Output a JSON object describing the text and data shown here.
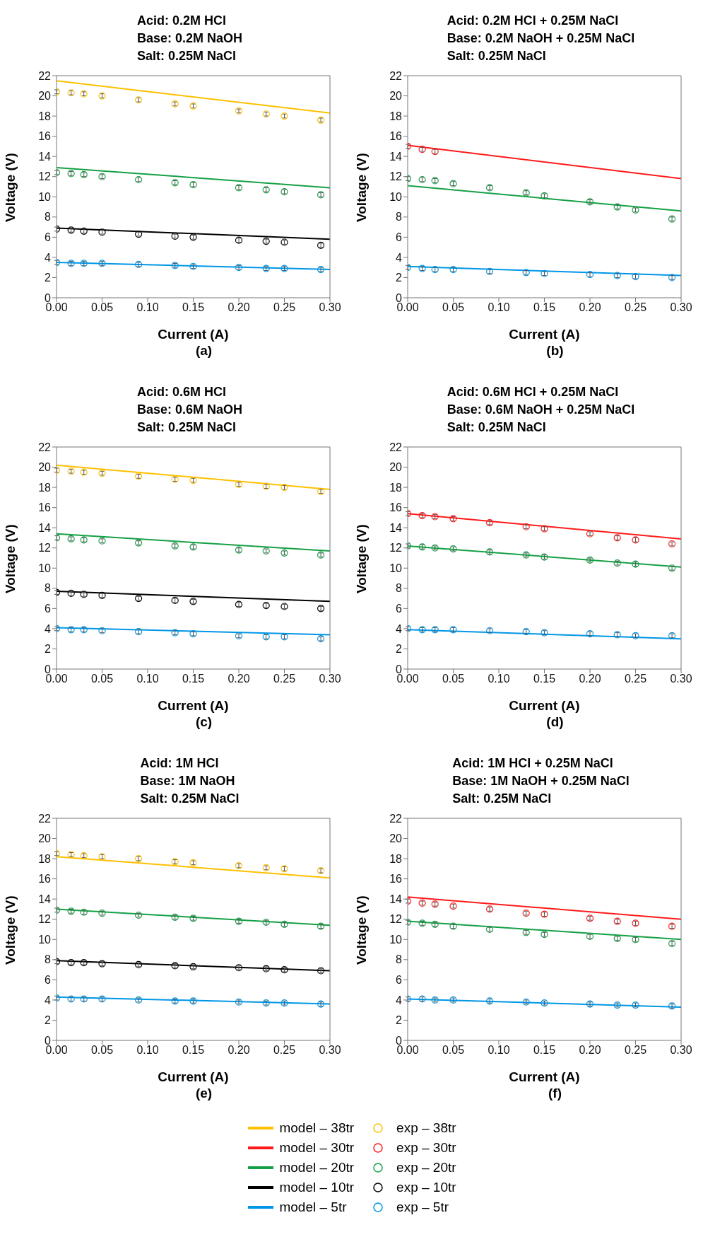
{
  "chart_data": [
    {
      "type": "scatter",
      "title": "Acid: 0.2M HCl\nBase: 0.2M NaOH\nSalt: 0.25M NaCl",
      "xlabel": "Current (A)",
      "ylabel": "Voltage (V)",
      "annotations": [
        "(a)"
      ],
      "xlim": [
        0,
        0.3
      ],
      "xticks": [
        {
          "value": 0,
          "label": "0.00"
        },
        {
          "value": 0.05,
          "label": "0.05"
        },
        {
          "value": 0.1,
          "label": "0.10"
        },
        {
          "value": 0.15,
          "label": "0.15"
        },
        {
          "value": 0.2,
          "label": "0.20"
        },
        {
          "value": 0.25,
          "label": "0.25"
        },
        {
          "value": 0.3,
          "label": "0.30"
        }
      ],
      "ylim": [
        0,
        22
      ],
      "yticks": [
        0,
        2,
        4,
        6,
        8,
        10,
        12,
        14,
        16,
        18,
        20,
        22
      ],
      "grid": false,
      "legend": "bottom",
      "x": [
        0,
        0.016,
        0.03,
        0.05,
        0.09,
        0.13,
        0.15,
        0.2,
        0.23,
        0.25,
        0.29
      ],
      "series": [
        {
          "name": "model – 38tr",
          "type": "line",
          "color": "#ffc000",
          "marker": "none",
          "x": [
            0,
            0.3
          ],
          "values": [
            21.5,
            18.3
          ]
        },
        {
          "name": "exp – 38tr",
          "type": "scatter",
          "color": "#ffc000",
          "marker": "circle",
          "values": [
            20.4,
            20.3,
            20.2,
            20.0,
            19.6,
            19.2,
            19.0,
            18.5,
            18.2,
            18.0,
            17.6
          ],
          "errors": [
            0.2,
            0.2,
            0.2,
            0.2,
            0.2,
            0.2,
            0.2,
            0.2,
            0.2,
            0.2,
            0.2
          ]
        },
        {
          "name": "model – 20tr",
          "type": "line",
          "color": "#16a045",
          "marker": "none",
          "x": [
            0,
            0.3
          ],
          "values": [
            12.9,
            10.9
          ]
        },
        {
          "name": "exp – 20tr",
          "type": "scatter",
          "color": "#16a045",
          "marker": "circle",
          "values": [
            12.4,
            12.3,
            12.2,
            12.0,
            11.7,
            11.4,
            11.2,
            10.9,
            10.7,
            10.5,
            10.2
          ],
          "errors": [
            0.2,
            0.2,
            0.2,
            0.2,
            0.2,
            0.2,
            0.2,
            0.2,
            0.2,
            0.2,
            0.2
          ]
        },
        {
          "name": "model – 10tr",
          "type": "line",
          "color": "#000000",
          "marker": "none",
          "x": [
            0,
            0.3
          ],
          "values": [
            6.9,
            5.8
          ]
        },
        {
          "name": "exp – 10tr",
          "type": "scatter",
          "color": "#000000",
          "marker": "circle",
          "values": [
            6.8,
            6.7,
            6.6,
            6.5,
            6.3,
            6.1,
            6.0,
            5.7,
            5.6,
            5.5,
            5.2
          ],
          "errors": [
            0.2,
            0.2,
            0.2,
            0.2,
            0.2,
            0.2,
            0.2,
            0.2,
            0.2,
            0.2,
            0.2
          ]
        },
        {
          "name": "model – 5tr",
          "type": "line",
          "color": "#0096e6",
          "marker": "none",
          "x": [
            0,
            0.3
          ],
          "values": [
            3.5,
            2.8
          ]
        },
        {
          "name": "exp – 5tr",
          "type": "scatter",
          "color": "#0096e6",
          "marker": "circle",
          "values": [
            3.5,
            3.4,
            3.4,
            3.4,
            3.3,
            3.2,
            3.1,
            3.0,
            2.9,
            2.9,
            2.8
          ],
          "errors": [
            0.2,
            0.2,
            0.2,
            0.2,
            0.2,
            0.2,
            0.2,
            0.2,
            0.2,
            0.2,
            0.2
          ]
        }
      ]
    },
    {
      "type": "scatter",
      "title": "Acid: 0.2M HCl + 0.25M NaCl\nBase: 0.2M NaOH + 0.25M NaCl\nSalt: 0.25M NaCl",
      "xlabel": "Current (A)",
      "ylabel": "Voltage (V)",
      "annotations": [
        "(b)"
      ],
      "xlim": [
        0,
        0.3
      ],
      "xticks": [
        {
          "value": 0,
          "label": "0.00"
        },
        {
          "value": 0.05,
          "label": "0.05"
        },
        {
          "value": 0.1,
          "label": "0.10"
        },
        {
          "value": 0.15,
          "label": "0.15"
        },
        {
          "value": 0.2,
          "label": "0.20"
        },
        {
          "value": 0.25,
          "label": "0.25"
        },
        {
          "value": 0.3,
          "label": "0.30"
        }
      ],
      "ylim": [
        0,
        22
      ],
      "yticks": [
        0,
        2,
        4,
        6,
        8,
        10,
        12,
        14,
        16,
        18,
        20,
        22
      ],
      "grid": false,
      "legend": "bottom",
      "x": [
        0,
        0.016,
        0.03,
        0.05,
        0.09,
        0.13,
        0.15,
        0.2,
        0.23,
        0.25,
        0.29
      ],
      "series": [
        {
          "name": "model – 30tr",
          "type": "line",
          "color": "#ff1a1a",
          "marker": "none",
          "x": [
            0,
            0.3
          ],
          "values": [
            15.1,
            11.8
          ]
        },
        {
          "name": "exp – 30tr",
          "type": "scatter",
          "color": "#ff1a1a",
          "marker": "circle",
          "x": [
            0,
            0.016,
            0.03
          ],
          "values": [
            15.0,
            14.7,
            14.5
          ],
          "errors": [
            0.2,
            0.2,
            0.2
          ]
        },
        {
          "name": "model – 20tr",
          "type": "line",
          "color": "#16a045",
          "marker": "none",
          "x": [
            0,
            0.3
          ],
          "values": [
            11.1,
            8.6
          ]
        },
        {
          "name": "exp – 20tr",
          "type": "scatter",
          "color": "#16a045",
          "marker": "circle",
          "values": [
            11.8,
            11.7,
            11.6,
            11.3,
            10.9,
            10.4,
            10.1,
            9.5,
            9.0,
            8.7,
            7.8
          ],
          "errors": [
            0.2,
            0.2,
            0.2,
            0.2,
            0.2,
            0.2,
            0.2,
            0.2,
            0.2,
            0.2,
            0.2
          ]
        },
        {
          "name": "model – 5tr",
          "type": "line",
          "color": "#0096e6",
          "marker": "none",
          "x": [
            0,
            0.3
          ],
          "values": [
            3.1,
            2.2
          ]
        },
        {
          "name": "exp – 5tr",
          "type": "scatter",
          "color": "#0096e6",
          "marker": "circle",
          "values": [
            3.0,
            2.9,
            2.8,
            2.8,
            2.6,
            2.5,
            2.4,
            2.3,
            2.2,
            2.1,
            2.0
          ],
          "errors": [
            0.2,
            0.2,
            0.2,
            0.2,
            0.2,
            0.2,
            0.2,
            0.2,
            0.2,
            0.2,
            0.2
          ]
        }
      ]
    },
    {
      "type": "scatter",
      "title": "Acid: 0.6M HCl\nBase: 0.6M NaOH\nSalt: 0.25M NaCl",
      "xlabel": "Current (A)",
      "ylabel": "Voltage (V)",
      "annotations": [
        "(c)"
      ],
      "xlim": [
        0,
        0.3
      ],
      "xticks": [
        {
          "value": 0,
          "label": "0.00"
        },
        {
          "value": 0.05,
          "label": "0.05"
        },
        {
          "value": 0.1,
          "label": "0.10"
        },
        {
          "value": 0.15,
          "label": "0.15"
        },
        {
          "value": 0.2,
          "label": "0.20"
        },
        {
          "value": 0.25,
          "label": "0.25"
        },
        {
          "value": 0.3,
          "label": "0.30"
        }
      ],
      "ylim": [
        0,
        22
      ],
      "yticks": [
        0,
        2,
        4,
        6,
        8,
        10,
        12,
        14,
        16,
        18,
        20,
        22
      ],
      "grid": false,
      "legend": "bottom",
      "x": [
        0,
        0.016,
        0.03,
        0.05,
        0.09,
        0.13,
        0.15,
        0.2,
        0.23,
        0.25,
        0.29
      ],
      "series": [
        {
          "name": "model – 38tr",
          "type": "line",
          "color": "#ffc000",
          "marker": "none",
          "x": [
            0,
            0.3
          ],
          "values": [
            20.2,
            17.8
          ]
        },
        {
          "name": "exp – 38tr",
          "type": "scatter",
          "color": "#ffc000",
          "marker": "circle",
          "values": [
            19.7,
            19.6,
            19.5,
            19.4,
            19.1,
            18.8,
            18.7,
            18.3,
            18.1,
            18.0,
            17.6
          ],
          "errors": [
            0.2,
            0.2,
            0.2,
            0.2,
            0.2,
            0.2,
            0.2,
            0.2,
            0.2,
            0.2,
            0.2
          ]
        },
        {
          "name": "model – 20tr",
          "type": "line",
          "color": "#16a045",
          "marker": "none",
          "x": [
            0,
            0.3
          ],
          "values": [
            13.4,
            11.7
          ]
        },
        {
          "name": "exp – 20tr",
          "type": "scatter",
          "color": "#16a045",
          "marker": "circle",
          "values": [
            13.0,
            12.9,
            12.8,
            12.7,
            12.5,
            12.2,
            12.1,
            11.8,
            11.7,
            11.5,
            11.3
          ],
          "errors": [
            0.2,
            0.2,
            0.2,
            0.2,
            0.2,
            0.2,
            0.2,
            0.2,
            0.2,
            0.2,
            0.2
          ]
        },
        {
          "name": "model – 10tr",
          "type": "line",
          "color": "#000000",
          "marker": "none",
          "x": [
            0,
            0.3
          ],
          "values": [
            7.7,
            6.7
          ]
        },
        {
          "name": "exp – 10tr",
          "type": "scatter",
          "color": "#000000",
          "marker": "circle",
          "values": [
            7.6,
            7.5,
            7.4,
            7.3,
            7.0,
            6.8,
            6.7,
            6.4,
            6.3,
            6.2,
            6.0
          ],
          "errors": [
            0.2,
            0.2,
            0.2,
            0.2,
            0.2,
            0.2,
            0.2,
            0.2,
            0.2,
            0.2,
            0.2
          ]
        },
        {
          "name": "model – 5tr",
          "type": "line",
          "color": "#0096e6",
          "marker": "none",
          "x": [
            0,
            0.3
          ],
          "values": [
            4.1,
            3.4
          ]
        },
        {
          "name": "exp – 5tr",
          "type": "scatter",
          "color": "#0096e6",
          "marker": "circle",
          "values": [
            4.0,
            3.9,
            3.9,
            3.8,
            3.7,
            3.6,
            3.5,
            3.3,
            3.2,
            3.2,
            3.0
          ],
          "errors": [
            0.2,
            0.2,
            0.2,
            0.2,
            0.2,
            0.2,
            0.2,
            0.2,
            0.2,
            0.2,
            0.2
          ]
        }
      ]
    },
    {
      "type": "scatter",
      "title": "Acid: 0.6M HCl + 0.25M NaCl\nBase: 0.6M NaOH + 0.25M NaCl\nSalt: 0.25M NaCl",
      "xlabel": "Current (A)",
      "ylabel": "Voltage (V)",
      "annotations": [
        "(d)"
      ],
      "xlim": [
        0,
        0.3
      ],
      "xticks": [
        {
          "value": 0,
          "label": "0.00"
        },
        {
          "value": 0.05,
          "label": "0.05"
        },
        {
          "value": 0.1,
          "label": "0.10"
        },
        {
          "value": 0.15,
          "label": "0.15"
        },
        {
          "value": 0.2,
          "label": "0.20"
        },
        {
          "value": 0.25,
          "label": "0.25"
        },
        {
          "value": 0.3,
          "label": "0.30"
        }
      ],
      "ylim": [
        0,
        22
      ],
      "yticks": [
        0,
        2,
        4,
        6,
        8,
        10,
        12,
        14,
        16,
        18,
        20,
        22
      ],
      "grid": false,
      "legend": "bottom",
      "x": [
        0,
        0.016,
        0.03,
        0.05,
        0.09,
        0.13,
        0.15,
        0.2,
        0.23,
        0.25,
        0.29
      ],
      "series": [
        {
          "name": "model – 30tr",
          "type": "line",
          "color": "#ff1a1a",
          "marker": "none",
          "x": [
            0,
            0.3
          ],
          "values": [
            15.4,
            12.9
          ]
        },
        {
          "name": "exp – 30tr",
          "type": "scatter",
          "color": "#ff1a1a",
          "marker": "circle",
          "values": [
            15.4,
            15.2,
            15.1,
            14.9,
            14.5,
            14.1,
            13.9,
            13.4,
            13.0,
            12.8,
            12.4
          ],
          "errors": [
            0.2,
            0.2,
            0.2,
            0.2,
            0.2,
            0.2,
            0.2,
            0.2,
            0.2,
            0.2,
            0.2
          ]
        },
        {
          "name": "model – 20tr",
          "type": "line",
          "color": "#16a045",
          "marker": "none",
          "x": [
            0,
            0.3
          ],
          "values": [
            12.2,
            10.1
          ]
        },
        {
          "name": "exp – 20tr",
          "type": "scatter",
          "color": "#16a045",
          "marker": "circle",
          "values": [
            12.2,
            12.1,
            12.0,
            11.9,
            11.6,
            11.3,
            11.1,
            10.8,
            10.5,
            10.4,
            10.0
          ],
          "errors": [
            0.2,
            0.2,
            0.2,
            0.2,
            0.2,
            0.2,
            0.2,
            0.2,
            0.2,
            0.2,
            0.2
          ]
        },
        {
          "name": "model – 5tr",
          "type": "line",
          "color": "#0096e6",
          "marker": "none",
          "x": [
            0,
            0.3
          ],
          "values": [
            3.9,
            3.0
          ]
        },
        {
          "name": "exp – 5tr",
          "type": "scatter",
          "color": "#0096e6",
          "marker": "circle",
          "values": [
            4.0,
            3.9,
            3.9,
            3.9,
            3.8,
            3.7,
            3.6,
            3.5,
            3.4,
            3.3,
            3.3
          ],
          "errors": [
            0.2,
            0.2,
            0.2,
            0.2,
            0.2,
            0.2,
            0.2,
            0.2,
            0.2,
            0.2,
            0.2
          ]
        }
      ]
    },
    {
      "type": "scatter",
      "title": "Acid: 1M HCl\nBase: 1M NaOH\nSalt: 0.25M NaCl",
      "xlabel": "Current (A)",
      "ylabel": "Voltage (V)",
      "annotations": [
        "(e)"
      ],
      "xlim": [
        0,
        0.3
      ],
      "xticks": [
        {
          "value": 0,
          "label": "0.00"
        },
        {
          "value": 0.05,
          "label": "0.05"
        },
        {
          "value": 0.1,
          "label": "0.10"
        },
        {
          "value": 0.15,
          "label": "0.15"
        },
        {
          "value": 0.2,
          "label": "0.20"
        },
        {
          "value": 0.25,
          "label": "0.25"
        },
        {
          "value": 0.3,
          "label": "0.30"
        }
      ],
      "ylim": [
        0,
        22
      ],
      "yticks": [
        0,
        2,
        4,
        6,
        8,
        10,
        12,
        14,
        16,
        18,
        20,
        22
      ],
      "grid": false,
      "legend": "bottom",
      "x": [
        0,
        0.016,
        0.03,
        0.05,
        0.09,
        0.13,
        0.15,
        0.2,
        0.23,
        0.25,
        0.29
      ],
      "series": [
        {
          "name": "model – 38tr",
          "type": "line",
          "color": "#ffc000",
          "marker": "none",
          "x": [
            0,
            0.3
          ],
          "values": [
            18.2,
            16.1
          ]
        },
        {
          "name": "exp – 38tr",
          "type": "scatter",
          "color": "#ffc000",
          "marker": "circle",
          "values": [
            18.5,
            18.4,
            18.3,
            18.2,
            18.0,
            17.7,
            17.6,
            17.3,
            17.1,
            17.0,
            16.8
          ],
          "errors": [
            0.2,
            0.2,
            0.2,
            0.2,
            0.2,
            0.2,
            0.2,
            0.2,
            0.2,
            0.2,
            0.2
          ]
        },
        {
          "name": "model – 20tr",
          "type": "line",
          "color": "#16a045",
          "marker": "none",
          "x": [
            0,
            0.3
          ],
          "values": [
            13.0,
            11.4
          ]
        },
        {
          "name": "exp – 20tr",
          "type": "scatter",
          "color": "#16a045",
          "marker": "circle",
          "values": [
            12.9,
            12.8,
            12.7,
            12.6,
            12.4,
            12.2,
            12.1,
            11.8,
            11.7,
            11.5,
            11.3
          ],
          "errors": [
            0.2,
            0.2,
            0.2,
            0.2,
            0.2,
            0.2,
            0.2,
            0.2,
            0.2,
            0.2,
            0.2
          ]
        },
        {
          "name": "model – 10tr",
          "type": "line",
          "color": "#000000",
          "marker": "none",
          "x": [
            0,
            0.3
          ],
          "values": [
            7.9,
            6.9
          ]
        },
        {
          "name": "exp – 10tr",
          "type": "scatter",
          "color": "#000000",
          "marker": "circle",
          "values": [
            7.8,
            7.7,
            7.7,
            7.6,
            7.5,
            7.4,
            7.3,
            7.2,
            7.1,
            7.0,
            6.9
          ],
          "errors": [
            0.2,
            0.2,
            0.2,
            0.2,
            0.2,
            0.2,
            0.2,
            0.2,
            0.2,
            0.2,
            0.2
          ]
        },
        {
          "name": "model – 5tr",
          "type": "line",
          "color": "#0096e6",
          "marker": "none",
          "x": [
            0,
            0.3
          ],
          "values": [
            4.3,
            3.6
          ]
        },
        {
          "name": "exp – 5tr",
          "type": "scatter",
          "color": "#0096e6",
          "marker": "circle",
          "values": [
            4.2,
            4.1,
            4.1,
            4.1,
            4.0,
            3.9,
            3.9,
            3.8,
            3.7,
            3.7,
            3.6
          ],
          "errors": [
            0.2,
            0.2,
            0.2,
            0.2,
            0.2,
            0.2,
            0.2,
            0.2,
            0.2,
            0.2,
            0.2
          ]
        }
      ]
    },
    {
      "type": "scatter",
      "title": "Acid: 1M HCl + 0.25M NaCl\nBase: 1M NaOH + 0.25M NaCl\nSalt: 0.25M NaCl",
      "xlabel": "Current (A)",
      "ylabel": "Voltage (V)",
      "annotations": [
        "(f)"
      ],
      "xlim": [
        0,
        0.3
      ],
      "xticks": [
        {
          "value": 0,
          "label": "0.00"
        },
        {
          "value": 0.05,
          "label": "0.05"
        },
        {
          "value": 0.1,
          "label": "0.10"
        },
        {
          "value": 0.15,
          "label": "0.15"
        },
        {
          "value": 0.2,
          "label": "0.20"
        },
        {
          "value": 0.25,
          "label": "0.25"
        },
        {
          "value": 0.3,
          "label": "0.30"
        }
      ],
      "ylim": [
        0,
        22
      ],
      "yticks": [
        0,
        2,
        4,
        6,
        8,
        10,
        12,
        14,
        16,
        18,
        20,
        22
      ],
      "grid": false,
      "legend": "bottom",
      "x": [
        0,
        0.016,
        0.03,
        0.05,
        0.09,
        0.13,
        0.15,
        0.2,
        0.23,
        0.25,
        0.29
      ],
      "series": [
        {
          "name": "model – 30tr",
          "type": "line",
          "color": "#ff1a1a",
          "marker": "none",
          "x": [
            0,
            0.3
          ],
          "values": [
            14.2,
            12.0
          ]
        },
        {
          "name": "exp – 30tr",
          "type": "scatter",
          "color": "#ff1a1a",
          "marker": "circle",
          "values": [
            13.8,
            13.6,
            13.5,
            13.3,
            13.0,
            12.6,
            12.5,
            12.1,
            11.8,
            11.6,
            11.3
          ],
          "errors": [
            0.2,
            0.2,
            0.2,
            0.2,
            0.2,
            0.2,
            0.2,
            0.2,
            0.2,
            0.2,
            0.2
          ]
        },
        {
          "name": "model – 20tr",
          "type": "line",
          "color": "#16a045",
          "marker": "none",
          "x": [
            0,
            0.3
          ],
          "values": [
            11.8,
            10.0
          ]
        },
        {
          "name": "exp – 20tr",
          "type": "scatter",
          "color": "#16a045",
          "marker": "circle",
          "values": [
            11.7,
            11.6,
            11.5,
            11.3,
            11.0,
            10.7,
            10.5,
            10.3,
            10.1,
            10.0,
            9.6
          ],
          "errors": [
            0.2,
            0.2,
            0.2,
            0.2,
            0.2,
            0.2,
            0.2,
            0.2,
            0.2,
            0.2,
            0.2
          ]
        },
        {
          "name": "model – 5tr",
          "type": "line",
          "color": "#0096e6",
          "marker": "none",
          "x": [
            0,
            0.3
          ],
          "values": [
            4.1,
            3.3
          ]
        },
        {
          "name": "exp – 5tr",
          "type": "scatter",
          "color": "#0096e6",
          "marker": "circle",
          "values": [
            4.1,
            4.1,
            4.0,
            4.0,
            3.9,
            3.8,
            3.7,
            3.6,
            3.5,
            3.5,
            3.4
          ],
          "errors": [
            0.2,
            0.2,
            0.2,
            0.2,
            0.2,
            0.2,
            0.2,
            0.2,
            0.2,
            0.2,
            0.2
          ]
        }
      ]
    }
  ]
}
